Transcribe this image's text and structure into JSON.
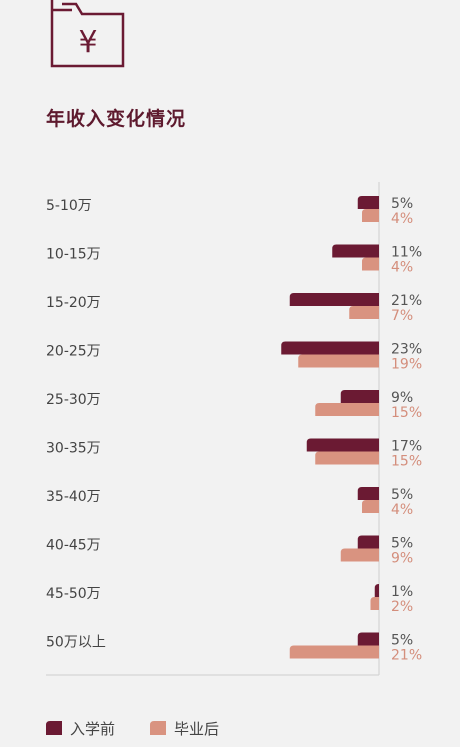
{
  "title": "年收入变化情况",
  "icon": {
    "name": "folder-yen-icon",
    "glyph": "¥"
  },
  "colors": {
    "before": "#6b1a33",
    "after": "#d99380",
    "text": "#444444"
  },
  "chart_data": {
    "type": "bar",
    "orientation": "horizontal",
    "categories": [
      "5-10万",
      "10-15万",
      "15-20万",
      "20-25万",
      "25-30万",
      "30-35万",
      "35-40万",
      "40-45万",
      "45-50万",
      "50万以上"
    ],
    "series": [
      {
        "name": "入学前",
        "values": [
          5,
          11,
          21,
          23,
          9,
          17,
          5,
          5,
          1,
          5
        ],
        "labels": [
          "5%",
          "11%",
          "21%",
          "23%",
          "9%",
          "17%",
          "5%",
          "5%",
          "1%",
          "5%"
        ]
      },
      {
        "name": "毕业后",
        "values": [
          4,
          4,
          7,
          19,
          15,
          15,
          4,
          9,
          2,
          21
        ],
        "labels": [
          "4%",
          "4%",
          "7%",
          "19%",
          "15%",
          "15%",
          "4%",
          "9%",
          "2%",
          "21%"
        ]
      }
    ],
    "unit": "%",
    "legend": "bottom-left"
  }
}
